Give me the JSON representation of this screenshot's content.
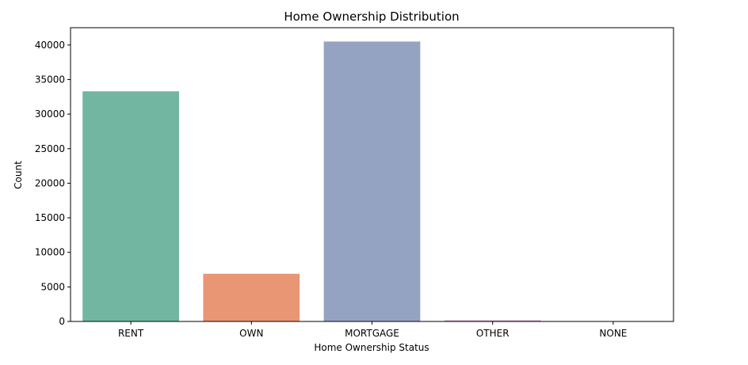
{
  "chart_data": {
    "type": "bar",
    "title": "Home Ownership Distribution",
    "xlabel": "Home Ownership Status",
    "ylabel": "Count",
    "categories": [
      "RENT",
      "OWN",
      "MORTGAGE",
      "OTHER",
      "NONE"
    ],
    "values": [
      33300,
      6900,
      40500,
      150,
      8
    ],
    "colors": [
      "#72b6a1",
      "#e99675",
      "#95a3c3",
      "#c98bb9",
      "#a3cd6d"
    ],
    "ylim": [
      0,
      42500
    ],
    "yticks": [
      0,
      5000,
      10000,
      15000,
      20000,
      25000,
      30000,
      35000,
      40000
    ],
    "grid": false,
    "legend": "none"
  }
}
